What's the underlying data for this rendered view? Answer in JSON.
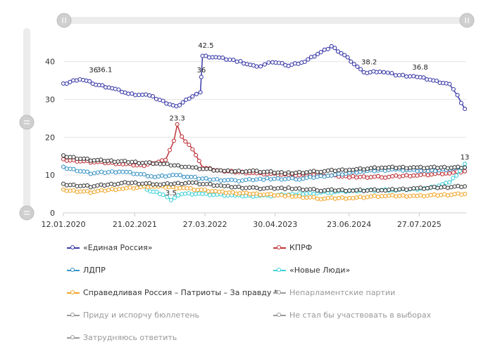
{
  "chart_data": {
    "type": "line",
    "title": "",
    "xlabel": "",
    "ylabel": "",
    "ylim": [
      0,
      47
    ],
    "yticks": [
      0,
      10,
      20,
      30,
      40
    ],
    "xlim": [
      "2020-01-12",
      "2026-04-20"
    ],
    "xtick_labels": [
      "12.01.2020",
      "21.02.2021",
      "27.03.2022",
      "30.04.2023",
      "23.06.2024",
      "27.07.2025"
    ],
    "xtick_dates": [
      "2020-01-12",
      "2021-02-21",
      "2022-03-27",
      "2023-04-30",
      "2024-06-23",
      "2025-07-27"
    ],
    "grid": "horizontal",
    "legend_position": "bottom",
    "series": [
      {
        "name": "«Единая Россия»",
        "color": "#3b3aa8",
        "visible": true,
        "points": [
          [
            "2020-01-12",
            34
          ],
          [
            "2020-04-15",
            35.5
          ],
          [
            "2020-07-15",
            34
          ],
          [
            "2020-10-15",
            33
          ],
          [
            "2021-01-15",
            31.5
          ],
          [
            "2021-05-15",
            31
          ],
          [
            "2021-08-01",
            29.5
          ],
          [
            "2021-10-15",
            28
          ],
          [
            "2022-01-15",
            31
          ],
          [
            "2022-03-01",
            32
          ],
          [
            "2022-03-06",
            36
          ],
          [
            "2022-03-13",
            41.5
          ],
          [
            "2022-06-15",
            41
          ],
          [
            "2022-10-15",
            40
          ],
          [
            "2023-01-15",
            38.5
          ],
          [
            "2023-04-15",
            40
          ],
          [
            "2023-07-15",
            39
          ],
          [
            "2023-10-15",
            40
          ],
          [
            "2024-01-15",
            42.5
          ],
          [
            "2024-03-15",
            44
          ],
          [
            "2024-06-15",
            41
          ],
          [
            "2024-09-15",
            37
          ],
          [
            "2024-12-15",
            37.5
          ],
          [
            "2025-03-15",
            36.5
          ],
          [
            "2025-07-15",
            36
          ],
          [
            "2025-10-15",
            35
          ],
          [
            "2026-01-15",
            34
          ],
          [
            "2026-03-01",
            31
          ],
          [
            "2026-04-12",
            27.5
          ]
        ],
        "labels": [
          {
            "date": "2020-07-01",
            "value": 36,
            "text": "36"
          },
          {
            "date": "2020-09-01",
            "value": 36.1,
            "text": "36.1"
          },
          {
            "date": "2022-04-01",
            "value": 42.5,
            "text": "42.5"
          },
          {
            "date": "2022-03-06",
            "value": 36,
            "text": "36"
          },
          {
            "date": "2024-10-15",
            "value": 38.2,
            "text": "38.2"
          },
          {
            "date": "2025-08-01",
            "value": 36.8,
            "text": "36.8"
          }
        ]
      },
      {
        "name": "КПРФ",
        "color": "#c0353b",
        "visible": true,
        "points": [
          [
            "2020-01-12",
            14
          ],
          [
            "2020-06-15",
            13.5
          ],
          [
            "2020-12-15",
            13
          ],
          [
            "2021-04-15",
            12.5
          ],
          [
            "2021-08-15",
            14
          ],
          [
            "2021-10-01",
            19
          ],
          [
            "2021-10-20",
            23.3
          ],
          [
            "2021-11-15",
            20
          ],
          [
            "2022-01-15",
            17
          ],
          [
            "2022-03-13",
            12
          ],
          [
            "2022-07-15",
            11
          ],
          [
            "2023-01-15",
            10.5
          ],
          [
            "2023-07-15",
            10
          ],
          [
            "2024-01-15",
            10
          ],
          [
            "2024-07-15",
            9.5
          ],
          [
            "2025-01-15",
            9.5
          ],
          [
            "2025-07-15",
            10
          ],
          [
            "2026-01-15",
            10.5
          ],
          [
            "2026-04-12",
            11
          ]
        ],
        "labels": [
          {
            "date": "2021-10-20",
            "value": 23.3,
            "text": "23.3"
          }
        ]
      },
      {
        "name": "ЛДПР",
        "color": "#3a94c7",
        "visible": true,
        "points": [
          [
            "2020-01-12",
            12
          ],
          [
            "2020-06-15",
            10.5
          ],
          [
            "2020-12-15",
            11
          ],
          [
            "2021-06-15",
            9.5
          ],
          [
            "2021-10-15",
            10
          ],
          [
            "2022-03-13",
            9
          ],
          [
            "2022-09-15",
            8.5
          ],
          [
            "2023-03-15",
            9
          ],
          [
            "2023-09-15",
            9
          ],
          [
            "2024-03-15",
            10
          ],
          [
            "2024-09-15",
            11
          ],
          [
            "2025-03-15",
            11.5
          ],
          [
            "2025-09-15",
            11
          ],
          [
            "2026-04-12",
            12
          ]
        ],
        "labels": []
      },
      {
        "name": "«Новые Люди»",
        "color": "#3fd0d8",
        "visible": true,
        "points": [
          [
            "2021-05-01",
            6
          ],
          [
            "2021-08-01",
            5
          ],
          [
            "2021-09-15",
            3.5
          ],
          [
            "2021-11-15",
            5
          ],
          [
            "2022-03-13",
            5
          ],
          [
            "2022-09-15",
            4.5
          ],
          [
            "2023-03-15",
            4.5
          ],
          [
            "2023-09-15",
            5
          ],
          [
            "2024-03-15",
            5.5
          ],
          [
            "2024-09-15",
            6
          ],
          [
            "2025-03-15",
            6
          ],
          [
            "2025-09-15",
            6.5
          ],
          [
            "2026-01-15",
            8
          ],
          [
            "2026-03-15",
            11
          ],
          [
            "2026-04-12",
            13
          ]
        ],
        "labels": [
          {
            "date": "2021-09-15",
            "value": 3.5,
            "text": "3.5"
          },
          {
            "date": "2026-04-12",
            "value": 13,
            "text": "13"
          }
        ]
      },
      {
        "name": "Справедливая Россия – Патриоты – За правду *",
        "color": "#f0a62a",
        "visible": true,
        "points": [
          [
            "2020-01-12",
            6
          ],
          [
            "2020-06-15",
            5.5
          ],
          [
            "2020-12-15",
            6.5
          ],
          [
            "2021-06-15",
            7
          ],
          [
            "2021-12-15",
            6.5
          ],
          [
            "2022-06-15",
            5.5
          ],
          [
            "2023-01-15",
            5
          ],
          [
            "2023-07-15",
            4.5
          ],
          [
            "2024-01-15",
            3.8
          ],
          [
            "2024-07-15",
            4
          ],
          [
            "2025-01-15",
            4.5
          ],
          [
            "2025-07-15",
            4.5
          ],
          [
            "2026-04-12",
            5
          ]
        ],
        "labels": []
      },
      {
        "name": "Непарламентские партии",
        "color": "#2b2b2b",
        "visible": false,
        "points": [
          [
            "2020-01-12",
            7.5
          ],
          [
            "2020-06-15",
            7
          ],
          [
            "2021-01-15",
            8
          ],
          [
            "2021-07-15",
            7.5
          ],
          [
            "2022-01-15",
            8
          ],
          [
            "2022-07-15",
            7
          ],
          [
            "2023-01-15",
            6.5
          ],
          [
            "2023-07-15",
            6.5
          ],
          [
            "2024-01-15",
            6
          ],
          [
            "2024-07-15",
            6
          ],
          [
            "2025-01-15",
            6
          ],
          [
            "2025-07-15",
            6.5
          ],
          [
            "2026-04-12",
            7
          ]
        ],
        "labels": []
      },
      {
        "name": "Приду и испорчу бюллетень",
        "color": "#999999",
        "visible": false,
        "points": [],
        "labels": []
      },
      {
        "name": "Не стал бы участвовать в выборах",
        "color": "#2b2b2b",
        "visible": false,
        "points": [
          [
            "2020-01-12",
            15
          ],
          [
            "2020-06-15",
            14
          ],
          [
            "2021-01-15",
            13.5
          ],
          [
            "2021-07-15",
            13
          ],
          [
            "2022-01-15",
            12
          ],
          [
            "2022-07-15",
            11
          ],
          [
            "2023-01-15",
            11
          ],
          [
            "2023-07-15",
            10.5
          ],
          [
            "2024-01-15",
            11
          ],
          [
            "2024-07-15",
            11.5
          ],
          [
            "2025-01-15",
            12
          ],
          [
            "2025-07-15",
            12
          ],
          [
            "2026-04-12",
            12
          ]
        ],
        "labels": []
      },
      {
        "name": "Затрудняюсь ответить",
        "color": "#999999",
        "visible": false,
        "points": [],
        "labels": []
      }
    ]
  }
}
